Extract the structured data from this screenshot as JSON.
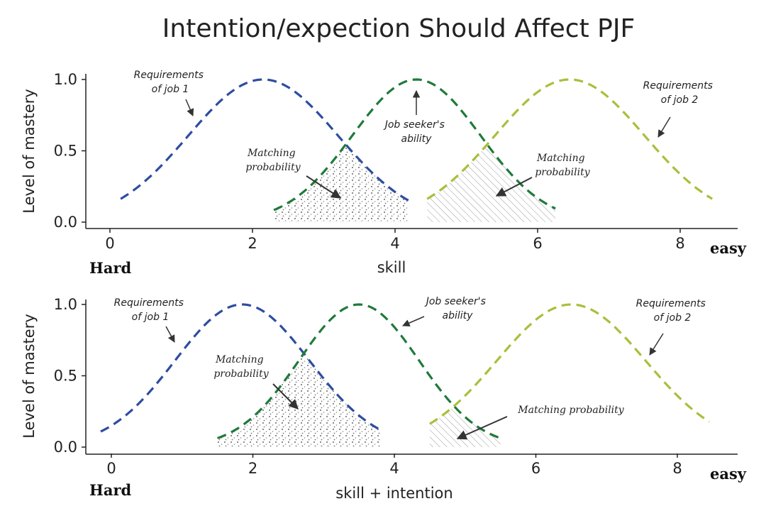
{
  "chart_data": [
    {
      "type": "line",
      "title": "Intention/expection Should Affect PJF",
      "xlabel": "skill",
      "ylabel": "Level of mastery",
      "x_end_labels": {
        "left": "Hard",
        "right": "easy"
      },
      "xticks": [
        0,
        2,
        4,
        6,
        8
      ],
      "yticks": [
        0.0,
        0.5,
        1.0
      ],
      "xlim": [
        -0.3,
        8.8
      ],
      "ylim": [
        -0.05,
        1.05
      ],
      "series": [
        {
          "key": "job1",
          "mu": 2.15,
          "sigma": 1.05,
          "xmin": 0.15,
          "xmax": 4.2,
          "color": "#2e4da0"
        },
        {
          "key": "seeker",
          "mu": 4.3,
          "sigma": 0.9,
          "xmin": 2.3,
          "xmax": 6.25,
          "color": "#1f7a3a"
        },
        {
          "key": "job2",
          "mu": 6.45,
          "sigma": 1.05,
          "xmin": 4.45,
          "xmax": 8.45,
          "color": "#a9bf3a"
        }
      ],
      "annotations": {
        "req1": [
          "Requirements",
          "of job 1"
        ],
        "seeker": [
          "Job seeker's",
          "ability"
        ],
        "req2": [
          "Requirements",
          "of job 2"
        ],
        "match1": [
          "Matching",
          "probability"
        ],
        "match2": [
          "Matching",
          "probability"
        ]
      }
    },
    {
      "type": "line",
      "xlabel": "skill + intention",
      "ylabel": "Level of mastery",
      "x_end_labels": {
        "left": "Hard",
        "right": "easy"
      },
      "xticks": [
        0,
        2,
        4,
        6,
        8
      ],
      "yticks": [
        0.0,
        0.5,
        1.0
      ],
      "xlim": [
        -0.3,
        8.8
      ],
      "ylim": [
        -0.05,
        1.05
      ],
      "series": [
        {
          "key": "job1",
          "mu": 1.85,
          "sigma": 0.95,
          "xmin": -0.15,
          "xmax": 3.8,
          "color": "#2e4da0"
        },
        {
          "key": "seeker",
          "mu": 3.5,
          "sigma": 0.85,
          "xmin": 1.5,
          "xmax": 5.5,
          "color": "#1f7a3a"
        },
        {
          "key": "job2",
          "mu": 6.5,
          "sigma": 1.05,
          "xmin": 4.5,
          "xmax": 8.45,
          "color": "#a9bf3a"
        }
      ],
      "annotations": {
        "req1": [
          "Requirements",
          "of job 1"
        ],
        "seeker": [
          "Job seeker's",
          "ability"
        ],
        "req2": [
          "Requirements",
          "of job 2"
        ],
        "match1": [
          "Matching",
          "probability"
        ],
        "match2": [
          "Matching probability"
        ]
      }
    }
  ]
}
